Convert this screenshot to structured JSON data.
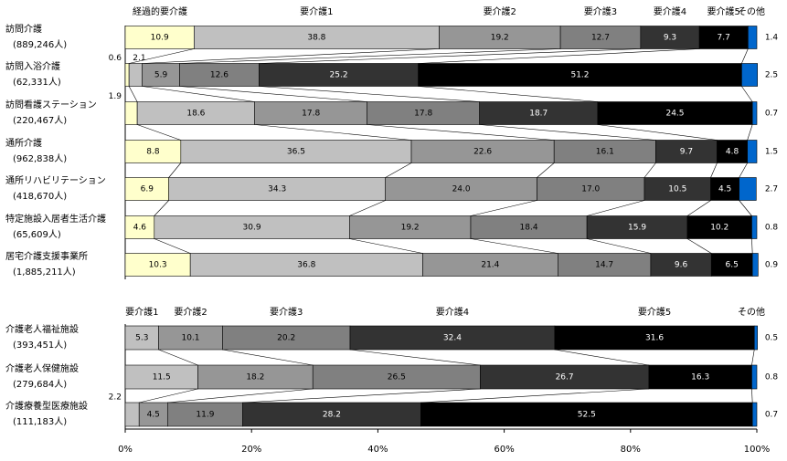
{
  "chart_data": [
    {
      "type": "stacked-bar-horizontal",
      "categories": [
        "訪問介護",
        "訪問入浴介護",
        "訪問看護ステーション",
        "通所介護",
        "通所リハビリテーション",
        "特定施設入居者生活介護",
        "居宅介護支援事業所"
      ],
      "category_sublabels": [
        "(889,246人)",
        "(62,331人)",
        "(220,467人)",
        "(962,838人)",
        "(418,670人)",
        "(65,609人)",
        "(1,885,211人)"
      ],
      "xlim": [
        0,
        100
      ],
      "series": [
        {
          "name": "経過的要介護",
          "color": "#ffffcc",
          "values": [
            10.9,
            0.6,
            1.9,
            8.8,
            6.9,
            4.6,
            10.3
          ]
        },
        {
          "name": "要介護1",
          "color": "#c0c0c0",
          "values": [
            38.8,
            2.1,
            18.6,
            36.5,
            34.3,
            30.9,
            36.8
          ]
        },
        {
          "name": "要介護2",
          "color": "#969696",
          "values": [
            19.2,
            5.9,
            17.8,
            22.6,
            24.0,
            19.2,
            21.4
          ],
          "value_labels": [
            "19.2",
            "5.9",
            "17.8",
            "22.6",
            "24.0",
            "19.2",
            "21.4"
          ]
        },
        {
          "name": "要介護3",
          "color": "#808080",
          "values": [
            12.7,
            12.6,
            17.8,
            16.1,
            17.0,
            18.4,
            14.7
          ],
          "value_labels": [
            "12.7",
            "12.6",
            "17.8",
            "16.1",
            "17.0",
            "18.4",
            "14.7"
          ]
        },
        {
          "name": "要介護4",
          "color": "#333333",
          "values": [
            9.3,
            25.2,
            18.7,
            9.7,
            10.5,
            15.9,
            9.6
          ]
        },
        {
          "name": "要介護5",
          "color": "#000000",
          "values": [
            7.7,
            51.2,
            24.5,
            4.8,
            4.5,
            10.2,
            6.5
          ]
        },
        {
          "name": "その他",
          "color": "#0066cc",
          "values": [
            1.4,
            2.5,
            0.7,
            1.5,
            2.7,
            0.8,
            0.9
          ]
        }
      ]
    },
    {
      "type": "stacked-bar-horizontal",
      "categories": [
        "介護老人福祉施設",
        "介護老人保健施設",
        "介護療養型医療施設"
      ],
      "category_sublabels": [
        "(393,451人)",
        "(279,684人)",
        "(111,183人)"
      ],
      "xlim": [
        0,
        100
      ],
      "xticks": [
        {
          "value": 0,
          "label": "0%"
        },
        {
          "value": 20,
          "label": "20%"
        },
        {
          "value": 40,
          "label": "40%"
        },
        {
          "value": 60,
          "label": "60%"
        },
        {
          "value": 80,
          "label": "80%"
        },
        {
          "value": 100,
          "label": "100%"
        }
      ],
      "series": [
        {
          "name": "要介護1",
          "color": "#c0c0c0",
          "values": [
            5.3,
            11.5,
            2.2
          ]
        },
        {
          "name": "要介護2",
          "color": "#969696",
          "values": [
            10.1,
            18.2,
            4.5
          ]
        },
        {
          "name": "要介護3",
          "color": "#808080",
          "values": [
            20.2,
            26.5,
            11.9
          ]
        },
        {
          "name": "要介護4",
          "color": "#333333",
          "values": [
            32.4,
            26.7,
            28.2
          ]
        },
        {
          "name": "要介護5",
          "color": "#000000",
          "values": [
            31.6,
            16.3,
            52.5
          ]
        },
        {
          "name": "その他",
          "color": "#0066cc",
          "values": [
            0.5,
            0.8,
            0.7
          ]
        }
      ]
    }
  ]
}
